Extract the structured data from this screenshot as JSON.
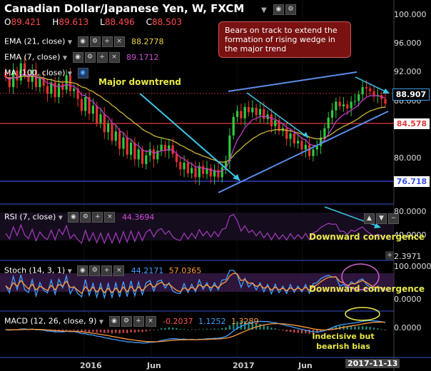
{
  "header": {
    "title": "Canadian Dollar/Japanese Yen, W, FXCM",
    "ohlc": {
      "o": "89.421",
      "h": "89.613",
      "l": "88.496",
      "c": "88.503"
    }
  },
  "indicators": {
    "ema21": {
      "label": "EMA (21, close)",
      "value": "88.2778"
    },
    "ema7": {
      "label": "EMA (7, close)",
      "value": "89.1712"
    },
    "ma100": {
      "label": "MA (100, close)"
    },
    "rsi": {
      "label": "RSI (7, close)",
      "value": "44.3694"
    },
    "stoch": {
      "label": "Stoch (14, 3, 1)",
      "k": "44.2171",
      "d": "57.0365"
    },
    "macd": {
      "label": "MACD (12, 26, close, 9)",
      "hist": "-0.2037",
      "macd": "1.1252",
      "signal": "1.3289"
    }
  },
  "annotations": {
    "callout": "Bears on track to extend the formation of rising wedge in the major trend",
    "major_downtrend": "Major downtrend",
    "rsi_note": "Downward convergence",
    "stoch_note": "Downward convergence",
    "macd_note": "Indecisive but bearish bias"
  },
  "price_axis": {
    "ticks": [
      "100.000",
      "96.000",
      "92.000",
      "88.000",
      "84.000",
      "80.000",
      "76.000"
    ],
    "tags": {
      "current": "88.907",
      "red_line": "84.578",
      "blue_line": "76.718"
    }
  },
  "rsi_axis": {
    "ticks": [
      "80.0000",
      "40.0000"
    ],
    "cut": "2.3971"
  },
  "stoch_axis": {
    "ticks": [
      "100.0000",
      "0.0000"
    ]
  },
  "macd_axis": {
    "ticks": [
      "0.0000"
    ]
  },
  "time_axis": {
    "labels": [
      "2016",
      "Jun",
      "2017",
      "Jun"
    ],
    "current": "2017-11-13"
  },
  "colors": {
    "up": "#2ecc40",
    "down": "#e8322e",
    "ema21": "#c9b43a",
    "ema7": "#c23bc8",
    "trend": "#3a8be0",
    "arrow": "#3ac8e8",
    "red_level": "#e23a3a",
    "blue_level": "#3a4ee0"
  },
  "chart_data": {
    "type": "candlestick",
    "ylim": [
      74,
      102
    ],
    "close": [
      92.5,
      91.0,
      93.5,
      92.0,
      94.6,
      93.0,
      91.8,
      93.6,
      91.0,
      92.4,
      91.2,
      90.0,
      91.7,
      89.5,
      91.5,
      90.6,
      92.8,
      90.4,
      90.8,
      89.2,
      87.4,
      89.5,
      87.0,
      88.2,
      85.6,
      86.9,
      84.2,
      85.5,
      82.9,
      84.3,
      81.7,
      83.4,
      80.8,
      82.6,
      80.1,
      81.6,
      79.4,
      80.7,
      81.6,
      80.1,
      81.4,
      82.3,
      81.4,
      82.2,
      80.9,
      79.7,
      78.6,
      79.6,
      78.0,
      78.8,
      77.4,
      79.1,
      77.9,
      78.8,
      77.5,
      78.5,
      77.4,
      78.9,
      79.8,
      83.7,
      86.5,
      87.4,
      86.3,
      88.0,
      87.2,
      87.9,
      86.8,
      87.7,
      86.2,
      86.9,
      85.1,
      86.0,
      84.4,
      84.8,
      83.2,
      84.0,
      82.5,
      82.9,
      81.6,
      82.3,
      80.6,
      81.6,
      82.1,
      83.4,
      84.8,
      86.4,
      87.5,
      88.8,
      88.1,
      88.4,
      87.8,
      88.8,
      88.9,
      89.9,
      91.0,
      90.8,
      90.4,
      89.6,
      89.8,
      89.2,
      88.5
    ]
  }
}
